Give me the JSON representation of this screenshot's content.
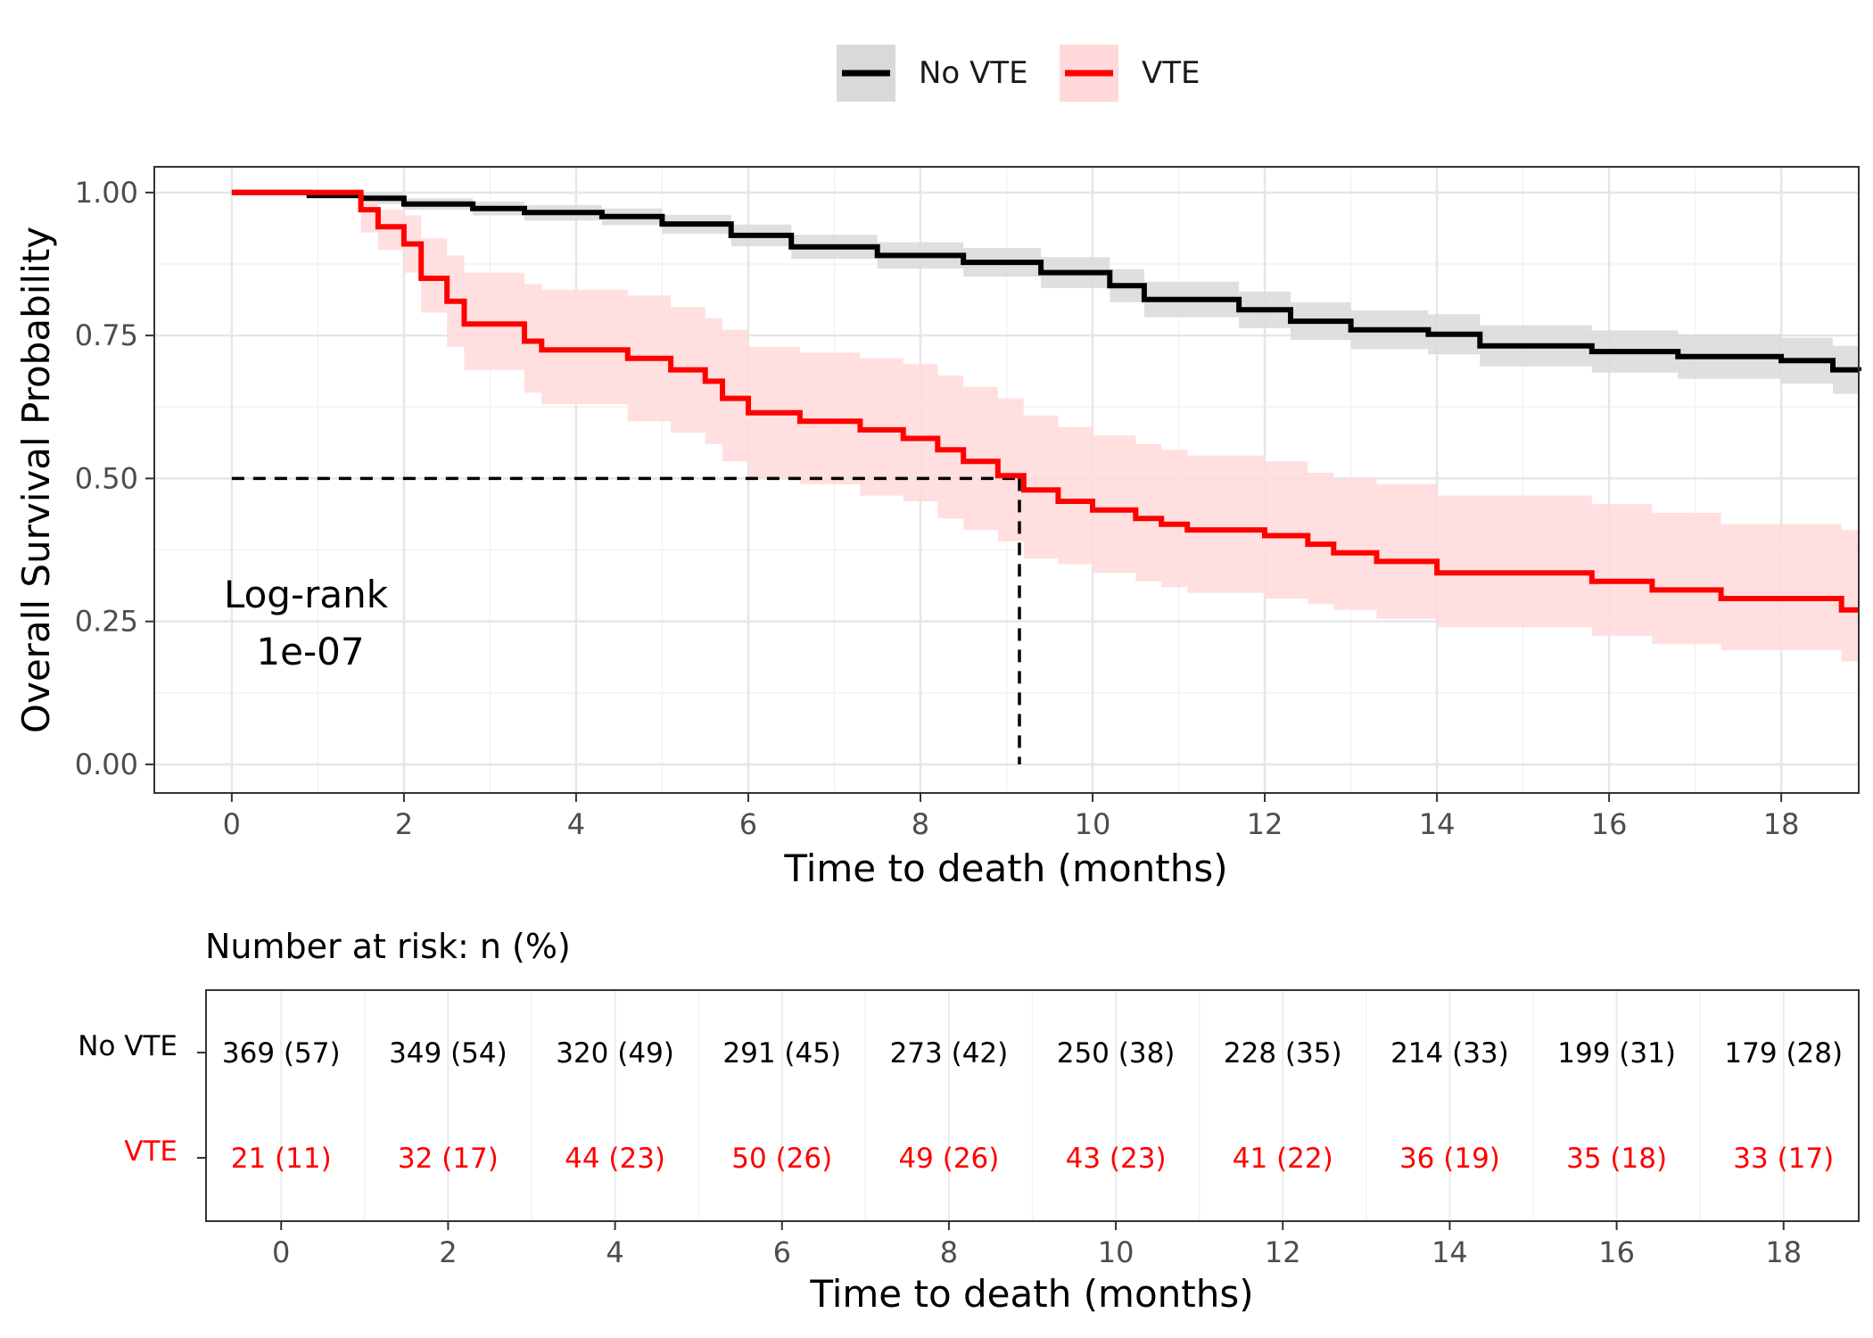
{
  "legend": {
    "items": [
      {
        "label": "No VTE",
        "color": "#000000",
        "band_color": "#d9d9d9"
      },
      {
        "label": "VTE",
        "color": "#ff0000",
        "band_color": "#ffd9d9"
      }
    ]
  },
  "chart_data": {
    "type": "line",
    "subtype": "kaplan-meier step curve with confidence bands",
    "xlabel": "Time to death (months)",
    "ylabel": "Overall Survival Probability",
    "xlim": [
      -0.9,
      18.9
    ],
    "ylim": [
      -0.05,
      1.045
    ],
    "xticks": [
      "0",
      "2",
      "4",
      "6",
      "8",
      "10",
      "12",
      "14",
      "16",
      "18"
    ],
    "yticks": [
      "0.00",
      "0.25",
      "0.50",
      "0.75",
      "1.00"
    ],
    "grid": true,
    "legend_position": "top",
    "annotation": {
      "line1": "Log-rank",
      "line2": "1e-07"
    },
    "median_line": {
      "x": 9.15,
      "y": 0.5
    },
    "series": [
      {
        "name": "No VTE",
        "color": "#000000",
        "band_color": "#d9d9d9",
        "x": [
          0,
          0.9,
          1.5,
          2,
          2.8,
          3.4,
          4.3,
          5.0,
          5.8,
          6.5,
          7.5,
          8.5,
          9.4,
          10.2,
          10.6,
          11.7,
          12.3,
          13.0,
          13.9,
          14.5,
          15.8,
          16.8,
          18.0,
          18.6,
          18.9
        ],
        "y": [
          1.0,
          0.995,
          0.99,
          0.98,
          0.972,
          0.965,
          0.958,
          0.945,
          0.925,
          0.905,
          0.89,
          0.878,
          0.86,
          0.837,
          0.813,
          0.795,
          0.775,
          0.76,
          0.752,
          0.732,
          0.722,
          0.713,
          0.706,
          0.69,
          0.688
        ],
        "lower": [
          1.0,
          0.99,
          0.98,
          0.97,
          0.96,
          0.951,
          0.943,
          0.928,
          0.906,
          0.884,
          0.867,
          0.853,
          0.833,
          0.808,
          0.782,
          0.763,
          0.742,
          0.726,
          0.717,
          0.696,
          0.685,
          0.674,
          0.666,
          0.648,
          0.645
        ],
        "upper": [
          1.0,
          1.0,
          1.0,
          0.99,
          0.984,
          0.978,
          0.972,
          0.961,
          0.944,
          0.926,
          0.913,
          0.903,
          0.887,
          0.866,
          0.844,
          0.827,
          0.808,
          0.794,
          0.787,
          0.768,
          0.759,
          0.752,
          0.746,
          0.732,
          0.73
        ]
      },
      {
        "name": "VTE",
        "color": "#ff0000",
        "band_color": "#ffd9d9",
        "x": [
          0,
          1.5,
          1.7,
          2.0,
          2.2,
          2.5,
          2.7,
          3.4,
          3.6,
          4.6,
          5.1,
          5.5,
          5.7,
          6.0,
          6.6,
          7.3,
          7.8,
          8.2,
          8.5,
          8.9,
          9.2,
          9.6,
          10.0,
          10.5,
          10.8,
          11.1,
          12.0,
          12.5,
          12.8,
          13.3,
          14.0,
          15.8,
          16.5,
          17.3,
          18.7
        ],
        "y": [
          1.0,
          0.97,
          0.94,
          0.91,
          0.85,
          0.81,
          0.77,
          0.74,
          0.725,
          0.71,
          0.69,
          0.67,
          0.64,
          0.615,
          0.6,
          0.585,
          0.57,
          0.55,
          0.53,
          0.505,
          0.48,
          0.46,
          0.445,
          0.43,
          0.42,
          0.41,
          0.4,
          0.385,
          0.37,
          0.355,
          0.335,
          0.32,
          0.305,
          0.29,
          0.27
        ],
        "lower": [
          1.0,
          0.93,
          0.9,
          0.86,
          0.79,
          0.73,
          0.69,
          0.65,
          0.63,
          0.6,
          0.58,
          0.56,
          0.53,
          0.5,
          0.49,
          0.47,
          0.46,
          0.43,
          0.41,
          0.39,
          0.36,
          0.35,
          0.335,
          0.32,
          0.31,
          0.3,
          0.29,
          0.28,
          0.27,
          0.255,
          0.24,
          0.225,
          0.21,
          0.2,
          0.18
        ],
        "upper": [
          1.0,
          0.99,
          0.97,
          0.96,
          0.92,
          0.89,
          0.86,
          0.84,
          0.83,
          0.82,
          0.8,
          0.78,
          0.76,
          0.73,
          0.72,
          0.71,
          0.7,
          0.68,
          0.66,
          0.64,
          0.61,
          0.59,
          0.575,
          0.56,
          0.55,
          0.54,
          0.53,
          0.51,
          0.5,
          0.49,
          0.47,
          0.455,
          0.44,
          0.42,
          0.41
        ]
      }
    ]
  },
  "risk_table": {
    "title": "Number at risk: n (%)",
    "xlabel": "Time to death (months)",
    "x": [
      0,
      2,
      4,
      6,
      8,
      10,
      12,
      14,
      16,
      18
    ],
    "xticks": [
      "0",
      "2",
      "4",
      "6",
      "8",
      "10",
      "12",
      "14",
      "16",
      "18"
    ],
    "rows": [
      {
        "label": "No VTE",
        "color": "#000000",
        "values": [
          "369 (57)",
          "349 (54)",
          "320 (49)",
          "291 (45)",
          "273 (42)",
          "250 (38)",
          "228 (35)",
          "214 (33)",
          "199 (31)",
          "179 (28)"
        ]
      },
      {
        "label": "VTE",
        "color": "#ff0000",
        "values": [
          "21 (11)",
          "32 (17)",
          "44 (23)",
          "50 (26)",
          "49 (26)",
          "43 (23)",
          "41 (22)",
          "36 (19)",
          "35 (18)",
          "33 (17)"
        ]
      }
    ]
  }
}
